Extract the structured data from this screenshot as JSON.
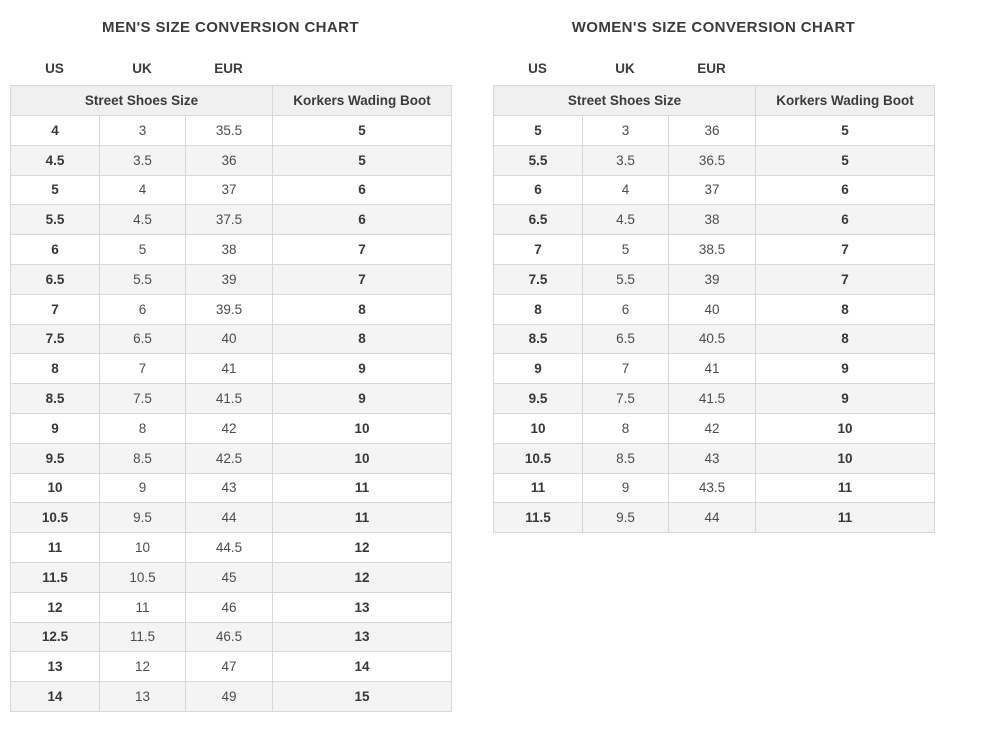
{
  "page": {
    "background": "#ffffff"
  },
  "colors": {
    "title_text": "#3b3b3b",
    "cell_text": "#4d4d4d",
    "bold_cell_text": "#383838",
    "header_bg": "#f0f0f0",
    "alt_row_bg": "#f4f4f4",
    "border": "#d7d7d7"
  },
  "charts": [
    {
      "title": "MEN'S SIZE CONVERSION CHART",
      "col_labels": [
        "US",
        "UK",
        "EUR"
      ],
      "group_headers": [
        "Street Shoes Size",
        "Korkers Wading Boot"
      ],
      "columns": [
        "US",
        "UK",
        "EUR",
        "Korkers Wading Boot"
      ],
      "rows": [
        [
          "4",
          "3",
          "35.5",
          "5"
        ],
        [
          "4.5",
          "3.5",
          "36",
          "5"
        ],
        [
          "5",
          "4",
          "37",
          "6"
        ],
        [
          "5.5",
          "4.5",
          "37.5",
          "6"
        ],
        [
          "6",
          "5",
          "38",
          "7"
        ],
        [
          "6.5",
          "5.5",
          "39",
          "7"
        ],
        [
          "7",
          "6",
          "39.5",
          "8"
        ],
        [
          "7.5",
          "6.5",
          "40",
          "8"
        ],
        [
          "8",
          "7",
          "41",
          "9"
        ],
        [
          "8.5",
          "7.5",
          "41.5",
          "9"
        ],
        [
          "9",
          "8",
          "42",
          "10"
        ],
        [
          "9.5",
          "8.5",
          "42.5",
          "10"
        ],
        [
          "10",
          "9",
          "43",
          "11"
        ],
        [
          "10.5",
          "9.5",
          "44",
          "11"
        ],
        [
          "11",
          "10",
          "44.5",
          "12"
        ],
        [
          "11.5",
          "10.5",
          "45",
          "12"
        ],
        [
          "12",
          "11",
          "46",
          "13"
        ],
        [
          "12.5",
          "11.5",
          "46.5",
          "13"
        ],
        [
          "13",
          "12",
          "47",
          "14"
        ],
        [
          "14",
          "13",
          "49",
          "15"
        ]
      ]
    },
    {
      "title": "WOMEN'S SIZE CONVERSION CHART",
      "col_labels": [
        "US",
        "UK",
        "EUR"
      ],
      "group_headers": [
        "Street Shoes Size",
        "Korkers Wading Boot"
      ],
      "columns": [
        "US",
        "UK",
        "EUR",
        "Korkers Wading Boot"
      ],
      "rows": [
        [
          "5",
          "3",
          "36",
          "5"
        ],
        [
          "5.5",
          "3.5",
          "36.5",
          "5"
        ],
        [
          "6",
          "4",
          "37",
          "6"
        ],
        [
          "6.5",
          "4.5",
          "38",
          "6"
        ],
        [
          "7",
          "5",
          "38.5",
          "7"
        ],
        [
          "7.5",
          "5.5",
          "39",
          "7"
        ],
        [
          "8",
          "6",
          "40",
          "8"
        ],
        [
          "8.5",
          "6.5",
          "40.5",
          "8"
        ],
        [
          "9",
          "7",
          "41",
          "9"
        ],
        [
          "9.5",
          "7.5",
          "41.5",
          "9"
        ],
        [
          "10",
          "8",
          "42",
          "10"
        ],
        [
          "10.5",
          "8.5",
          "43",
          "10"
        ],
        [
          "11",
          "9",
          "43.5",
          "11"
        ],
        [
          "11.5",
          "9.5",
          "44",
          "11"
        ]
      ]
    }
  ]
}
